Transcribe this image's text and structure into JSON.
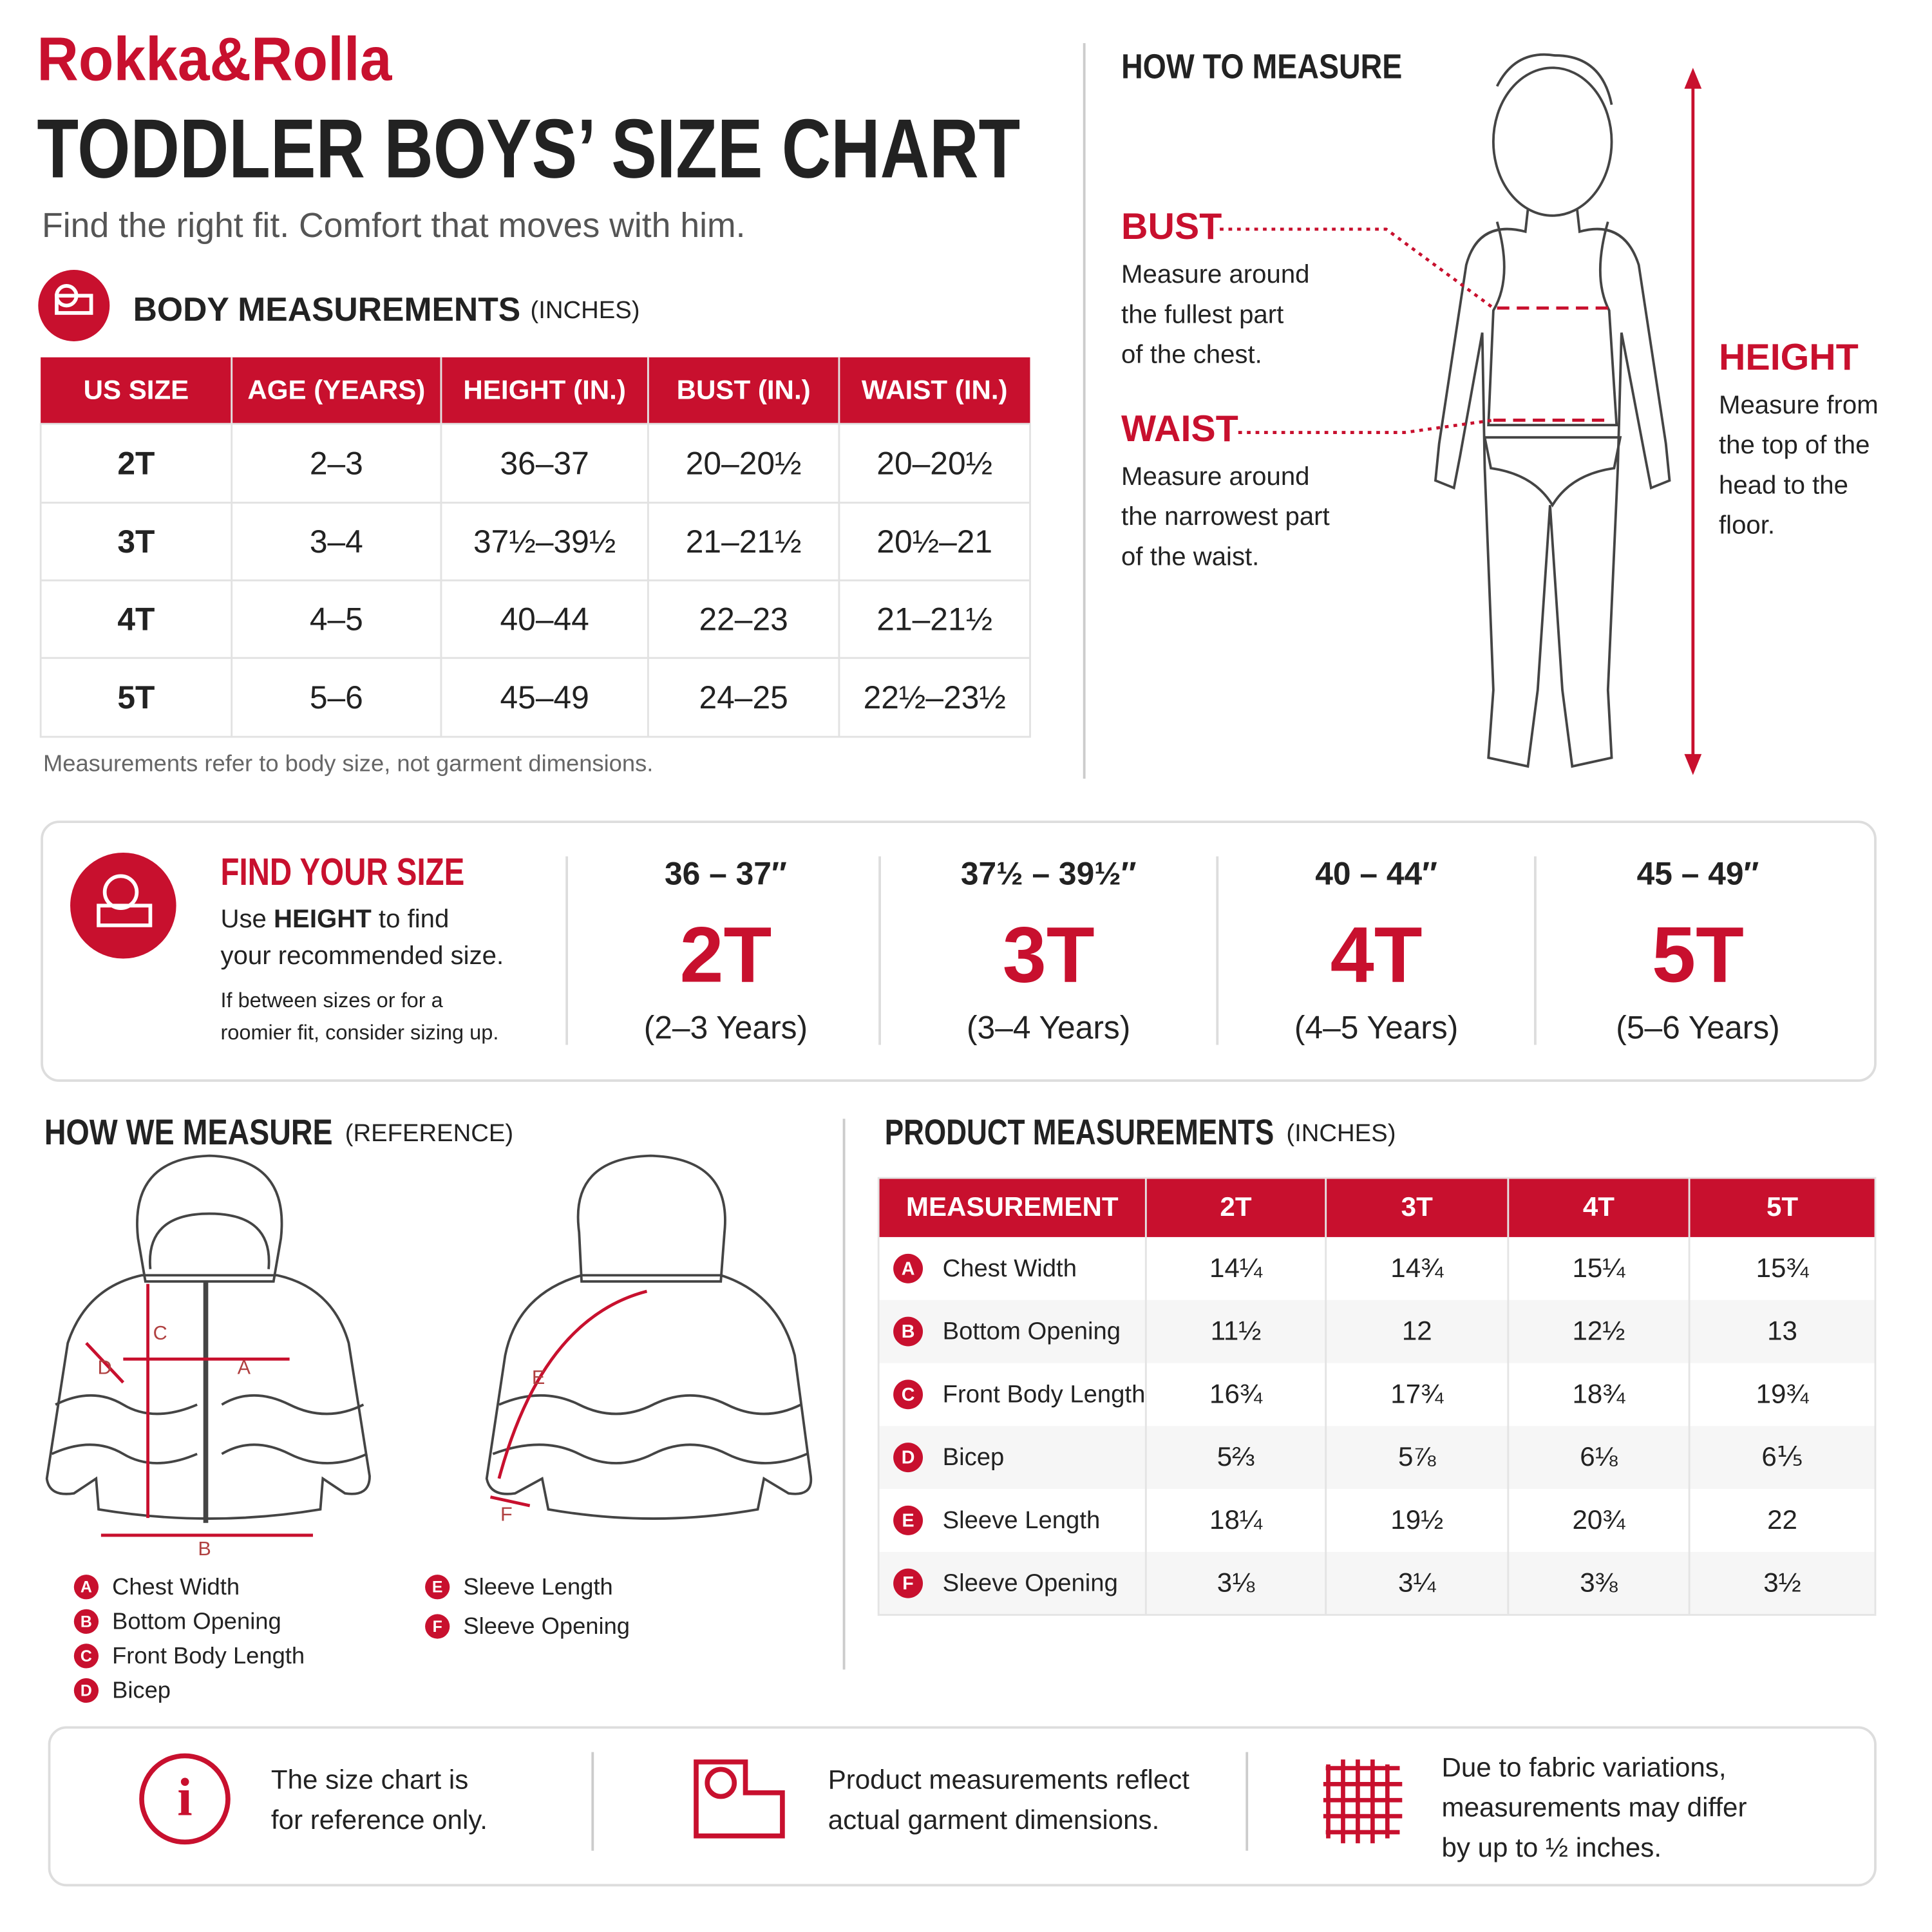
{
  "brand": "Rokka&Rolla",
  "title": "TODDLER BOYS’ SIZE CHART",
  "subtitle": "Find the right fit. Comfort that moves with him.",
  "body_measurements": {
    "heading": "BODY MEASUREMENTS",
    "unit": "(INCHES)",
    "columns": [
      "US SIZE",
      "AGE (YEARS)",
      "HEIGHT (IN.)",
      "BUST (IN.)",
      "WAIST (IN.)"
    ],
    "rows": [
      [
        "2T",
        "2–3",
        "36–37",
        "20–20½",
        "20–20½"
      ],
      [
        "3T",
        "3–4",
        "37½–39½",
        "21–21½",
        "20½–21"
      ],
      [
        "4T",
        "4–5",
        "40–44",
        "22–23",
        "21–21½"
      ],
      [
        "5T",
        "5–6",
        "45–49",
        "24–25",
        "22½–23½"
      ]
    ],
    "note": "Measurements refer to body size, not garment dimensions."
  },
  "how_to_measure": {
    "heading": "HOW TO MEASURE",
    "items": [
      {
        "label": "BUST",
        "lines": [
          "Measure around",
          "the fullest part",
          "of the chest."
        ]
      },
      {
        "label": "WAIST",
        "lines": [
          "Measure around",
          "the narrowest part",
          "of the waist."
        ]
      },
      {
        "label": "HEIGHT",
        "lines": [
          "Measure from",
          "the top of the",
          "head to the",
          "floor."
        ]
      }
    ]
  },
  "find_your_size": {
    "heading": "FIND YOUR SIZE",
    "instruction": [
      "Use ",
      "HEIGHT",
      " to find"
    ],
    "instruction_line2": "your recommended size.",
    "tip": [
      "If between sizes or for a",
      "roomier fit, consider sizing up."
    ],
    "sizes": [
      {
        "range": "36 – 37″",
        "size": "2T",
        "years": "(2–3 Years)"
      },
      {
        "range": "37½ – 39½″",
        "size": "3T",
        "years": "(3–4 Years)"
      },
      {
        "range": "40 – 44″",
        "size": "4T",
        "years": "(4–5 Years)"
      },
      {
        "range": "45 – 49″",
        "size": "5T",
        "years": "(5–6 Years)"
      }
    ]
  },
  "how_we_measure": {
    "heading": "HOW WE MEASURE",
    "unit": "(REFERENCE)",
    "legend": [
      {
        "letter": "A",
        "label": "Chest Width"
      },
      {
        "letter": "B",
        "label": "Bottom Opening"
      },
      {
        "letter": "C",
        "label": "Front Body Length"
      },
      {
        "letter": "D",
        "label": "Bicep"
      },
      {
        "letter": "E",
        "label": "Sleeve Length"
      },
      {
        "letter": "F",
        "label": "Sleeve Opening"
      }
    ]
  },
  "product_measurements": {
    "heading": "PRODUCT MEASUREMENTS",
    "unit": "(INCHES)",
    "columns": [
      "MEASUREMENT",
      "2T",
      "3T",
      "4T",
      "5T"
    ],
    "rows": [
      {
        "letter": "A",
        "name": "Chest Width",
        "values": [
          "14¼",
          "14¾",
          "15¼",
          "15¾"
        ]
      },
      {
        "letter": "B",
        "name": "Bottom Opening",
        "values": [
          "11½",
          "12",
          "12½",
          "13"
        ]
      },
      {
        "letter": "C",
        "name": "Front Body Length",
        "values": [
          "16¾",
          "17¾",
          "18¾",
          "19¾"
        ]
      },
      {
        "letter": "D",
        "name": "Bicep",
        "values": [
          "5⅔",
          "5⅞",
          "6⅛",
          "6⅕"
        ]
      },
      {
        "letter": "E",
        "name": "Sleeve Length",
        "values": [
          "18¼",
          "19½",
          "20¾",
          "22"
        ]
      },
      {
        "letter": "F",
        "name": "Sleeve Opening",
        "values": [
          "3⅛",
          "3¼",
          "3⅜",
          "3½"
        ]
      }
    ]
  },
  "notes": [
    [
      "The size chart is",
      "for reference only."
    ],
    [
      "Product measurements reflect",
      "actual garment dimensions."
    ],
    [
      "Due to fabric variations,",
      "measurements may differ",
      "by up to ½ inches."
    ]
  ]
}
